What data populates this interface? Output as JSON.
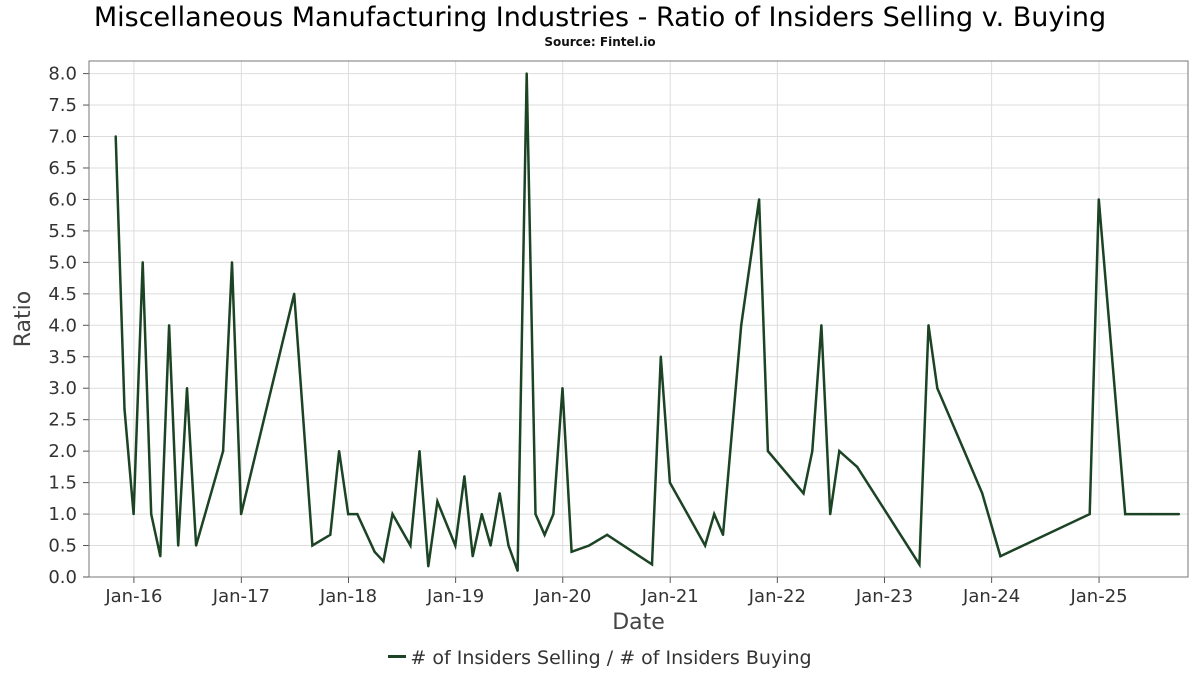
{
  "chart_data": {
    "type": "line",
    "title": "Miscellaneous Manufacturing Industries - Ratio of Insiders Selling v. Buying",
    "subtitle": "Source: Fintel.io",
    "xlabel": "Date",
    "ylabel": "Ratio",
    "ylim": [
      0,
      8.2
    ],
    "xlim": [
      "2015-08-01",
      "2025-10-31"
    ],
    "yticks": [
      "0.0",
      "0.5",
      "1.0",
      "1.5",
      "2.0",
      "2.5",
      "3.0",
      "3.5",
      "4.0",
      "4.5",
      "5.0",
      "5.5",
      "6.0",
      "6.5",
      "7.0",
      "7.5",
      "8.0"
    ],
    "xticks": [
      {
        "date": "2016-01-01",
        "label": "Jan-16"
      },
      {
        "date": "2017-01-01",
        "label": "Jan-17"
      },
      {
        "date": "2018-01-01",
        "label": "Jan-18"
      },
      {
        "date": "2019-01-01",
        "label": "Jan-19"
      },
      {
        "date": "2020-01-01",
        "label": "Jan-20"
      },
      {
        "date": "2021-01-01",
        "label": "Jan-21"
      },
      {
        "date": "2022-01-01",
        "label": "Jan-22"
      },
      {
        "date": "2023-01-01",
        "label": "Jan-23"
      },
      {
        "date": "2024-01-01",
        "label": "Jan-24"
      },
      {
        "date": "2025-01-01",
        "label": "Jan-25"
      }
    ],
    "grid": true,
    "legend_position": "bottom-center",
    "line_color": "#1b4324",
    "series": [
      {
        "name": "# of Insiders Selling / # of Insiders Buying",
        "x": [
          "2015-10-31",
          "2015-11-30",
          "2015-12-31",
          "2016-01-31",
          "2016-02-29",
          "2016-03-31",
          "2016-04-30",
          "2016-05-31",
          "2016-06-30",
          "2016-07-31",
          "2016-10-31",
          "2016-11-30",
          "2016-12-31",
          "2017-06-30",
          "2017-08-31",
          "2017-10-31",
          "2017-11-30",
          "2017-12-31",
          "2018-01-31",
          "2018-03-31",
          "2018-04-30",
          "2018-05-31",
          "2018-07-31",
          "2018-08-31",
          "2018-09-30",
          "2018-10-31",
          "2018-12-31",
          "2019-01-31",
          "2019-02-28",
          "2019-03-31",
          "2019-04-30",
          "2019-05-31",
          "2019-06-30",
          "2019-07-31",
          "2019-08-31",
          "2019-09-30",
          "2019-10-31",
          "2019-11-30",
          "2019-12-31",
          "2020-01-31",
          "2020-03-31",
          "2020-05-31",
          "2020-10-31",
          "2020-11-30",
          "2020-12-31",
          "2021-04-30",
          "2021-05-31",
          "2021-06-30",
          "2021-08-31",
          "2021-10-31",
          "2021-11-30",
          "2022-03-31",
          "2022-04-30",
          "2022-05-31",
          "2022-06-30",
          "2022-07-31",
          "2022-09-30",
          "2023-04-30",
          "2023-05-31",
          "2023-06-30",
          "2023-09-30",
          "2023-11-30",
          "2024-01-31",
          "2024-11-30",
          "2024-12-31",
          "2025-03-31",
          "2025-06-30",
          "2025-09-30"
        ],
        "values": [
          7.0,
          2.67,
          1.0,
          5.0,
          1.0,
          0.33,
          4.0,
          0.5,
          3.0,
          0.5,
          2.0,
          5.0,
          1.0,
          4.5,
          0.5,
          0.67,
          2.0,
          1.0,
          1.0,
          0.4,
          0.25,
          1.0,
          0.5,
          2.0,
          0.17,
          1.2,
          0.5,
          1.6,
          0.33,
          1.0,
          0.5,
          1.33,
          0.5,
          0.1,
          8.0,
          1.0,
          0.67,
          1.0,
          3.0,
          0.4,
          0.5,
          0.67,
          0.2,
          3.5,
          1.5,
          0.5,
          1.0,
          0.67,
          4.0,
          6.0,
          2.0,
          1.33,
          2.0,
          4.0,
          1.0,
          2.0,
          1.75,
          0.2,
          4.0,
          3.0,
          2.0,
          1.33,
          0.33,
          1.0,
          6.0,
          1.0,
          1.0,
          1.0
        ]
      }
    ]
  }
}
